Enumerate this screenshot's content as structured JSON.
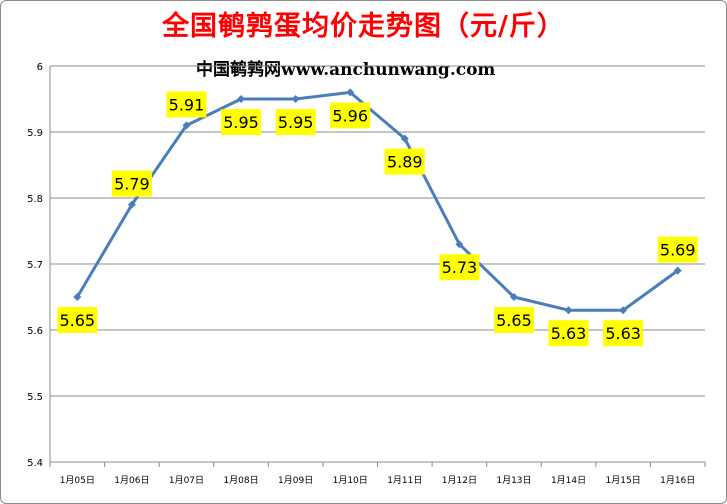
{
  "chart_data": {
    "type": "line",
    "title": "全国鹌鹑蛋均价走势图（元/斤）",
    "subtitle": "中国鹌鹑网www.anchunwang.com",
    "categories": [
      "1月05日",
      "1月06日",
      "1月07日",
      "1月08日",
      "1月09日",
      "1月10日",
      "1月11日",
      "1月12日",
      "1月13日",
      "1月14日",
      "1月15日",
      "1月16日"
    ],
    "values": [
      5.65,
      5.79,
      5.91,
      5.95,
      5.95,
      5.96,
      5.89,
      5.73,
      5.65,
      5.63,
      5.63,
      5.69
    ],
    "data_labels": [
      "5.65",
      "5.79",
      "5.91",
      "5.95",
      "5.95",
      "5.96",
      "5.89",
      "5.73",
      "5.65",
      "5.63",
      "5.63",
      "5.69"
    ],
    "yticks": [
      "5.4",
      "5.5",
      "5.6",
      "5.7",
      "5.8",
      "5.9",
      "6"
    ],
    "ylim": [
      5.4,
      6.0
    ],
    "xlabel": "",
    "ylabel": "",
    "grid": true,
    "legend": "none",
    "colors": {
      "title": "#ff0000",
      "line": "#4a7ebb",
      "label_bg": "#ffff00",
      "grid": "#8c8c8c"
    }
  }
}
